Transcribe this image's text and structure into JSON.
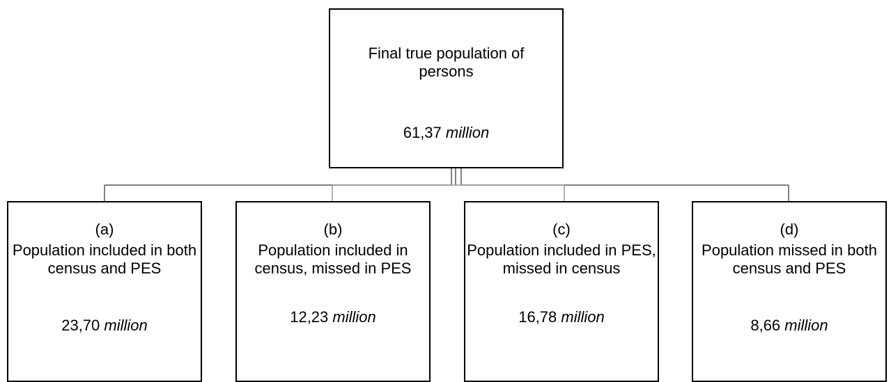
{
  "root": {
    "label": "Final true population of persons",
    "value": "61,37",
    "unit": "million"
  },
  "nodes": [
    {
      "tag": "(a)",
      "label": "Population included in both census and PES",
      "value": "23,70",
      "unit": "million"
    },
    {
      "tag": "(b)",
      "label": "Population included in census, missed in PES",
      "value": "12,23",
      "unit": "million"
    },
    {
      "tag": "(c)",
      "label": "Population included in PES, missed in census",
      "value": "16,78",
      "unit": "million"
    },
    {
      "tag": "(d)",
      "label": "Population missed in both census and PES",
      "value": "8,66",
      "unit": "million"
    }
  ]
}
